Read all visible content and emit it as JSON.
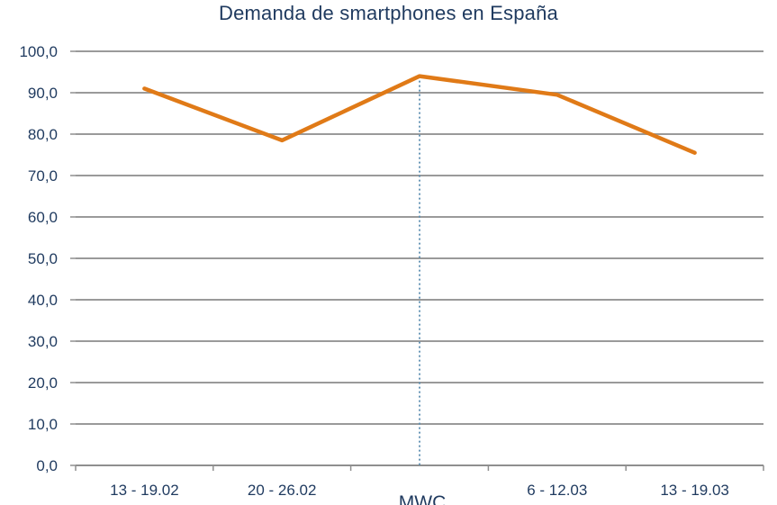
{
  "chart_data": {
    "type": "line",
    "title": "Demanda de smartphones en España",
    "xlabel": "",
    "ylabel": "",
    "ylim": [
      0,
      100
    ],
    "y_ticks": [
      "0,0",
      "10,0",
      "20,0",
      "30,0",
      "40,0",
      "50,0",
      "60,0",
      "70,0",
      "80,0",
      "90,0",
      "100,0"
    ],
    "y_tick_values": [
      0,
      10,
      20,
      30,
      40,
      50,
      60,
      70,
      80,
      90,
      100
    ],
    "categories": [
      "13 - 19.02",
      "20 - 26.02",
      "",
      "6 - 12.03",
      "13 - 19.03"
    ],
    "series": [
      {
        "values": [
          91.0,
          78.5,
          94.0,
          89.5,
          75.5
        ],
        "color": "#e07a17"
      }
    ],
    "annotation": {
      "label": "MWC",
      "category_index": 2,
      "line_style": "dotted",
      "color": "#5a8db0"
    },
    "grid": true,
    "legend": "none"
  }
}
